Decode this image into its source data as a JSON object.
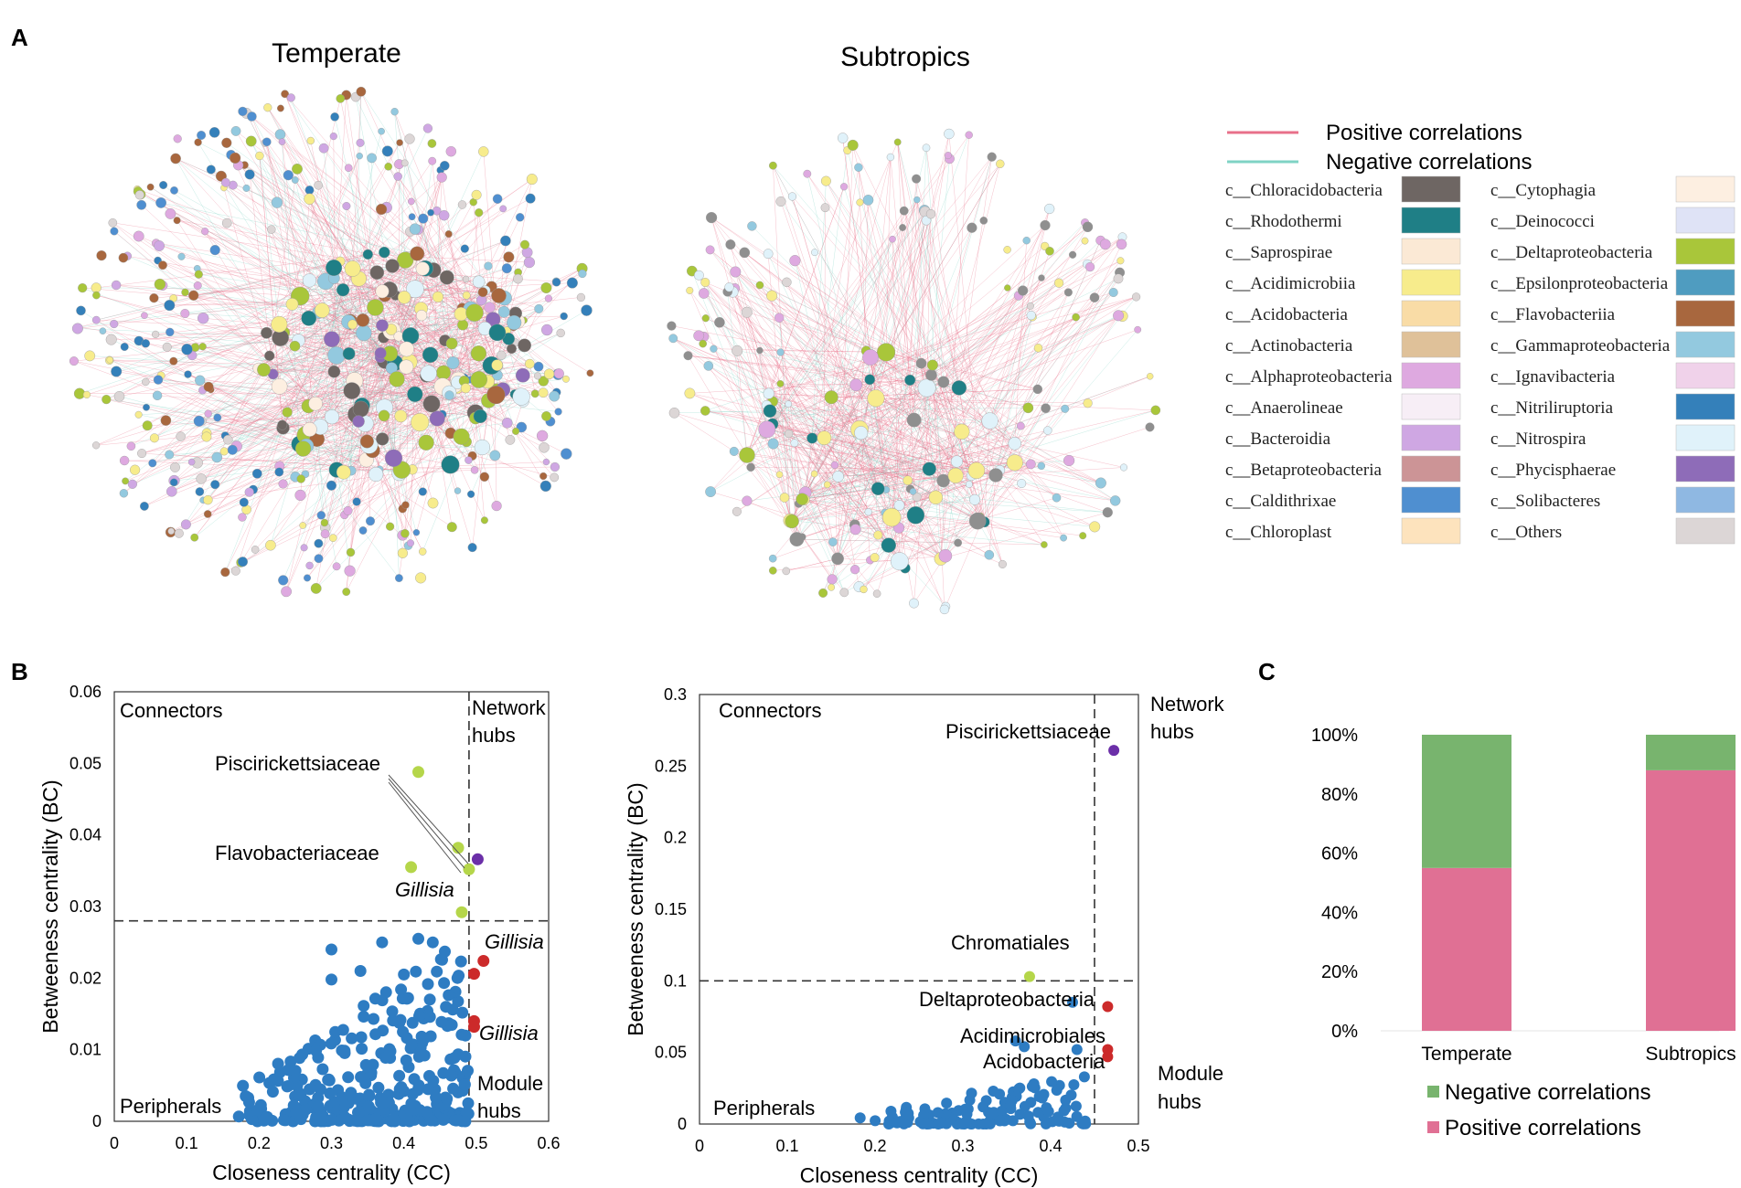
{
  "panel_letters": {
    "a": "A",
    "b": "B",
    "c": "C"
  },
  "colors": {
    "positive_edge": "#e8708a",
    "negative_edge": "#7fd3c4",
    "scatter_blue": "#2e7cc2",
    "hub_red": "#cc2a2a",
    "connector_green": "#b5d64a",
    "network_hub_purple": "#6b2fa8",
    "bar_negative": "#78b46e",
    "bar_positive": "#e07094"
  },
  "networks": [
    {
      "title": "Temperate"
    },
    {
      "title": "Subtropics"
    }
  ],
  "legend": {
    "lines": [
      {
        "label": "Positive correlations",
        "color": "#e8708a"
      },
      {
        "label": "Negative correlations",
        "color": "#7fd3c4"
      }
    ],
    "classes": [
      {
        "label": "c__Chloracidobacteria",
        "color": "#6e6663"
      },
      {
        "label": "c__Rhodothermi",
        "color": "#1f7f86"
      },
      {
        "label": "c__Saprospirae",
        "color": "#fbe9d5"
      },
      {
        "label": "c__Acidimicrobiia",
        "color": "#f7ec8c"
      },
      {
        "label": "c__Acidobacteria",
        "color": "#f9dca6"
      },
      {
        "label": "c__Actinobacteria",
        "color": "#dfc199"
      },
      {
        "label": "c__Alphaproteobacteria",
        "color": "#dea9e0"
      },
      {
        "label": "c__Anaerolineae",
        "color": "#f7eef6"
      },
      {
        "label": "c__Bacteroidia",
        "color": "#cfa7e3"
      },
      {
        "label": "c__Betaproteobacteria",
        "color": "#cc9496"
      },
      {
        "label": "c__Caldithrixae",
        "color": "#4f8fd0"
      },
      {
        "label": "c__Chloroplast",
        "color": "#fde3bd"
      },
      {
        "label": "c__Cytophagia",
        "color": "#fdefe1"
      },
      {
        "label": "c__Deinococci",
        "color": "#dfe3f6"
      },
      {
        "label": "c__Deltaproteobacteria",
        "color": "#a9c63a"
      },
      {
        "label": "c__Epsilonproteobacteria",
        "color": "#4f9cc0"
      },
      {
        "label": "c__Flavobacteriia",
        "color": "#a8673e"
      },
      {
        "label": "c__Gammaproteobacteria",
        "color": "#93c9df"
      },
      {
        "label": "c__Ignavibacteria",
        "color": "#f0d2ea"
      },
      {
        "label": "c__Nitriliruptoria",
        "color": "#3480ba"
      },
      {
        "label": "c__Nitrospira",
        "color": "#e0f2fa"
      },
      {
        "label": "c__Phycisphaerae",
        "color": "#8e6cb8"
      },
      {
        "label": "c__Solibacteres",
        "color": "#8fb8e2"
      },
      {
        "label": "c__Others",
        "color": "#dcd6d6"
      }
    ]
  },
  "scatter_left": {
    "xlabel": "Closeness centrality (CC)",
    "ylabel": "Betweeness centrality (BC)",
    "xlim": [
      0,
      0.6
    ],
    "ylim": [
      0,
      0.06
    ],
    "xticks": [
      "0",
      "0.1",
      "0.2",
      "0.3",
      "0.4",
      "0.5",
      "0.6"
    ],
    "yticks": [
      "0",
      "0.01",
      "0.02",
      "0.03",
      "0.04",
      "0.05",
      "0.06"
    ],
    "threshold_x": 0.49,
    "threshold_y": 0.028,
    "quadrants": {
      "connectors": "Connectors",
      "network_hubs_1": "Network",
      "network_hubs_2": "hubs",
      "peripherals": "Peripherals",
      "module_hubs_1": "Module",
      "module_hubs_2": "hubs"
    },
    "annotations": {
      "a1": "Piscirickettsiaceae",
      "a2": "Flavobacteriaceae",
      "a3": "Gillisia",
      "a4": "Gillisia",
      "a5": "Gillisia"
    },
    "highlight_points": [
      {
        "x": 0.42,
        "y": 0.0488,
        "color": "#b5d64a"
      },
      {
        "x": 0.475,
        "y": 0.0382,
        "color": "#b5d64a"
      },
      {
        "x": 0.41,
        "y": 0.0355,
        "color": "#b5d64a"
      },
      {
        "x": 0.49,
        "y": 0.0352,
        "color": "#b5d64a"
      },
      {
        "x": 0.48,
        "y": 0.0292,
        "color": "#b5d64a"
      },
      {
        "x": 0.502,
        "y": 0.0366,
        "color": "#6b2fa8"
      },
      {
        "x": 0.51,
        "y": 0.0224,
        "color": "#cc2a2a"
      },
      {
        "x": 0.497,
        "y": 0.0206,
        "color": "#cc2a2a"
      },
      {
        "x": 0.497,
        "y": 0.014,
        "color": "#cc2a2a"
      },
      {
        "x": 0.497,
        "y": 0.0132,
        "color": "#cc2a2a"
      }
    ]
  },
  "scatter_right": {
    "xlabel": "Closeness centrality (CC)",
    "ylabel": "Betweeness centrality (BC)",
    "xlim": [
      0,
      0.5
    ],
    "ylim": [
      0,
      0.3
    ],
    "xticks": [
      "0",
      "0.1",
      "0.2",
      "0.3",
      "0.4",
      "0.5"
    ],
    "yticks": [
      "0",
      "0.05",
      "0.1",
      "0.15",
      "0.2",
      "0.25",
      "0.3"
    ],
    "threshold_x": 0.45,
    "threshold_y": 0.1,
    "quadrants": {
      "connectors": "Connectors",
      "network_hubs_1": "Network",
      "network_hubs_2": "hubs",
      "peripherals": "Peripherals",
      "module_hubs_1": "Module",
      "module_hubs_2": "hubs"
    },
    "annotations": {
      "a1": "Piscirickettsiaceae",
      "a2": "Chromatiales",
      "a3": "Deltaproteobacteria",
      "a4": "Acidimicrobiales",
      "a5": "Acidobacteria"
    },
    "highlight_points": [
      {
        "x": 0.472,
        "y": 0.261,
        "color": "#6b2fa8"
      },
      {
        "x": 0.376,
        "y": 0.103,
        "color": "#b5d64a"
      },
      {
        "x": 0.465,
        "y": 0.082,
        "color": "#cc2a2a"
      },
      {
        "x": 0.465,
        "y": 0.052,
        "color": "#cc2a2a"
      },
      {
        "x": 0.465,
        "y": 0.047,
        "color": "#cc2a2a"
      }
    ]
  },
  "chart_data": [
    {
      "type": "scatter",
      "title": "",
      "xlabel": "Closeness centrality (CC)",
      "ylabel": "Betweeness centrality (BC)",
      "xlim": [
        0,
        0.6
      ],
      "ylim": [
        0,
        0.06
      ],
      "series": [
        {
          "name": "Piscirickettsiaceae",
          "x": [
            0.42,
            0.475
          ],
          "y": [
            0.0488,
            0.0382
          ]
        },
        {
          "name": "Flavobacteriaceae",
          "x": [
            0.41
          ],
          "y": [
            0.0355
          ]
        },
        {
          "name": "Gillisia",
          "x": [
            0.51,
            0.497
          ],
          "y": [
            0.0224,
            0.0136
          ]
        }
      ]
    },
    {
      "type": "scatter",
      "title": "",
      "xlabel": "Closeness centrality (CC)",
      "ylabel": "Betweeness centrality (BC)",
      "xlim": [
        0,
        0.5
      ],
      "ylim": [
        0,
        0.3
      ],
      "series": [
        {
          "name": "Piscirickettsiaceae",
          "x": [
            0.472
          ],
          "y": [
            0.261
          ]
        },
        {
          "name": "Chromatiales",
          "x": [
            0.376
          ],
          "y": [
            0.103
          ]
        },
        {
          "name": "Deltaproteobacteria",
          "x": [
            0.465
          ],
          "y": [
            0.082
          ]
        },
        {
          "name": "Acidimicrobiales",
          "x": [
            0.465
          ],
          "y": [
            0.052
          ]
        },
        {
          "name": "Acidobacteria",
          "x": [
            0.465
          ],
          "y": [
            0.047
          ]
        }
      ]
    },
    {
      "type": "bar",
      "title": "",
      "categories": [
        "Temperate",
        "Subtropics"
      ],
      "ylim": [
        0,
        100
      ],
      "yticks": [
        "0%",
        "20%",
        "40%",
        "60%",
        "80%",
        "100%"
      ],
      "series": [
        {
          "name": "Positive correlations",
          "values": [
            55,
            88
          ],
          "color": "#e07094"
        },
        {
          "name": "Negative correlations",
          "values": [
            45,
            12
          ],
          "color": "#78b46e"
        }
      ],
      "legend": [
        "Negative correlations",
        "Positive correlations"
      ]
    }
  ]
}
